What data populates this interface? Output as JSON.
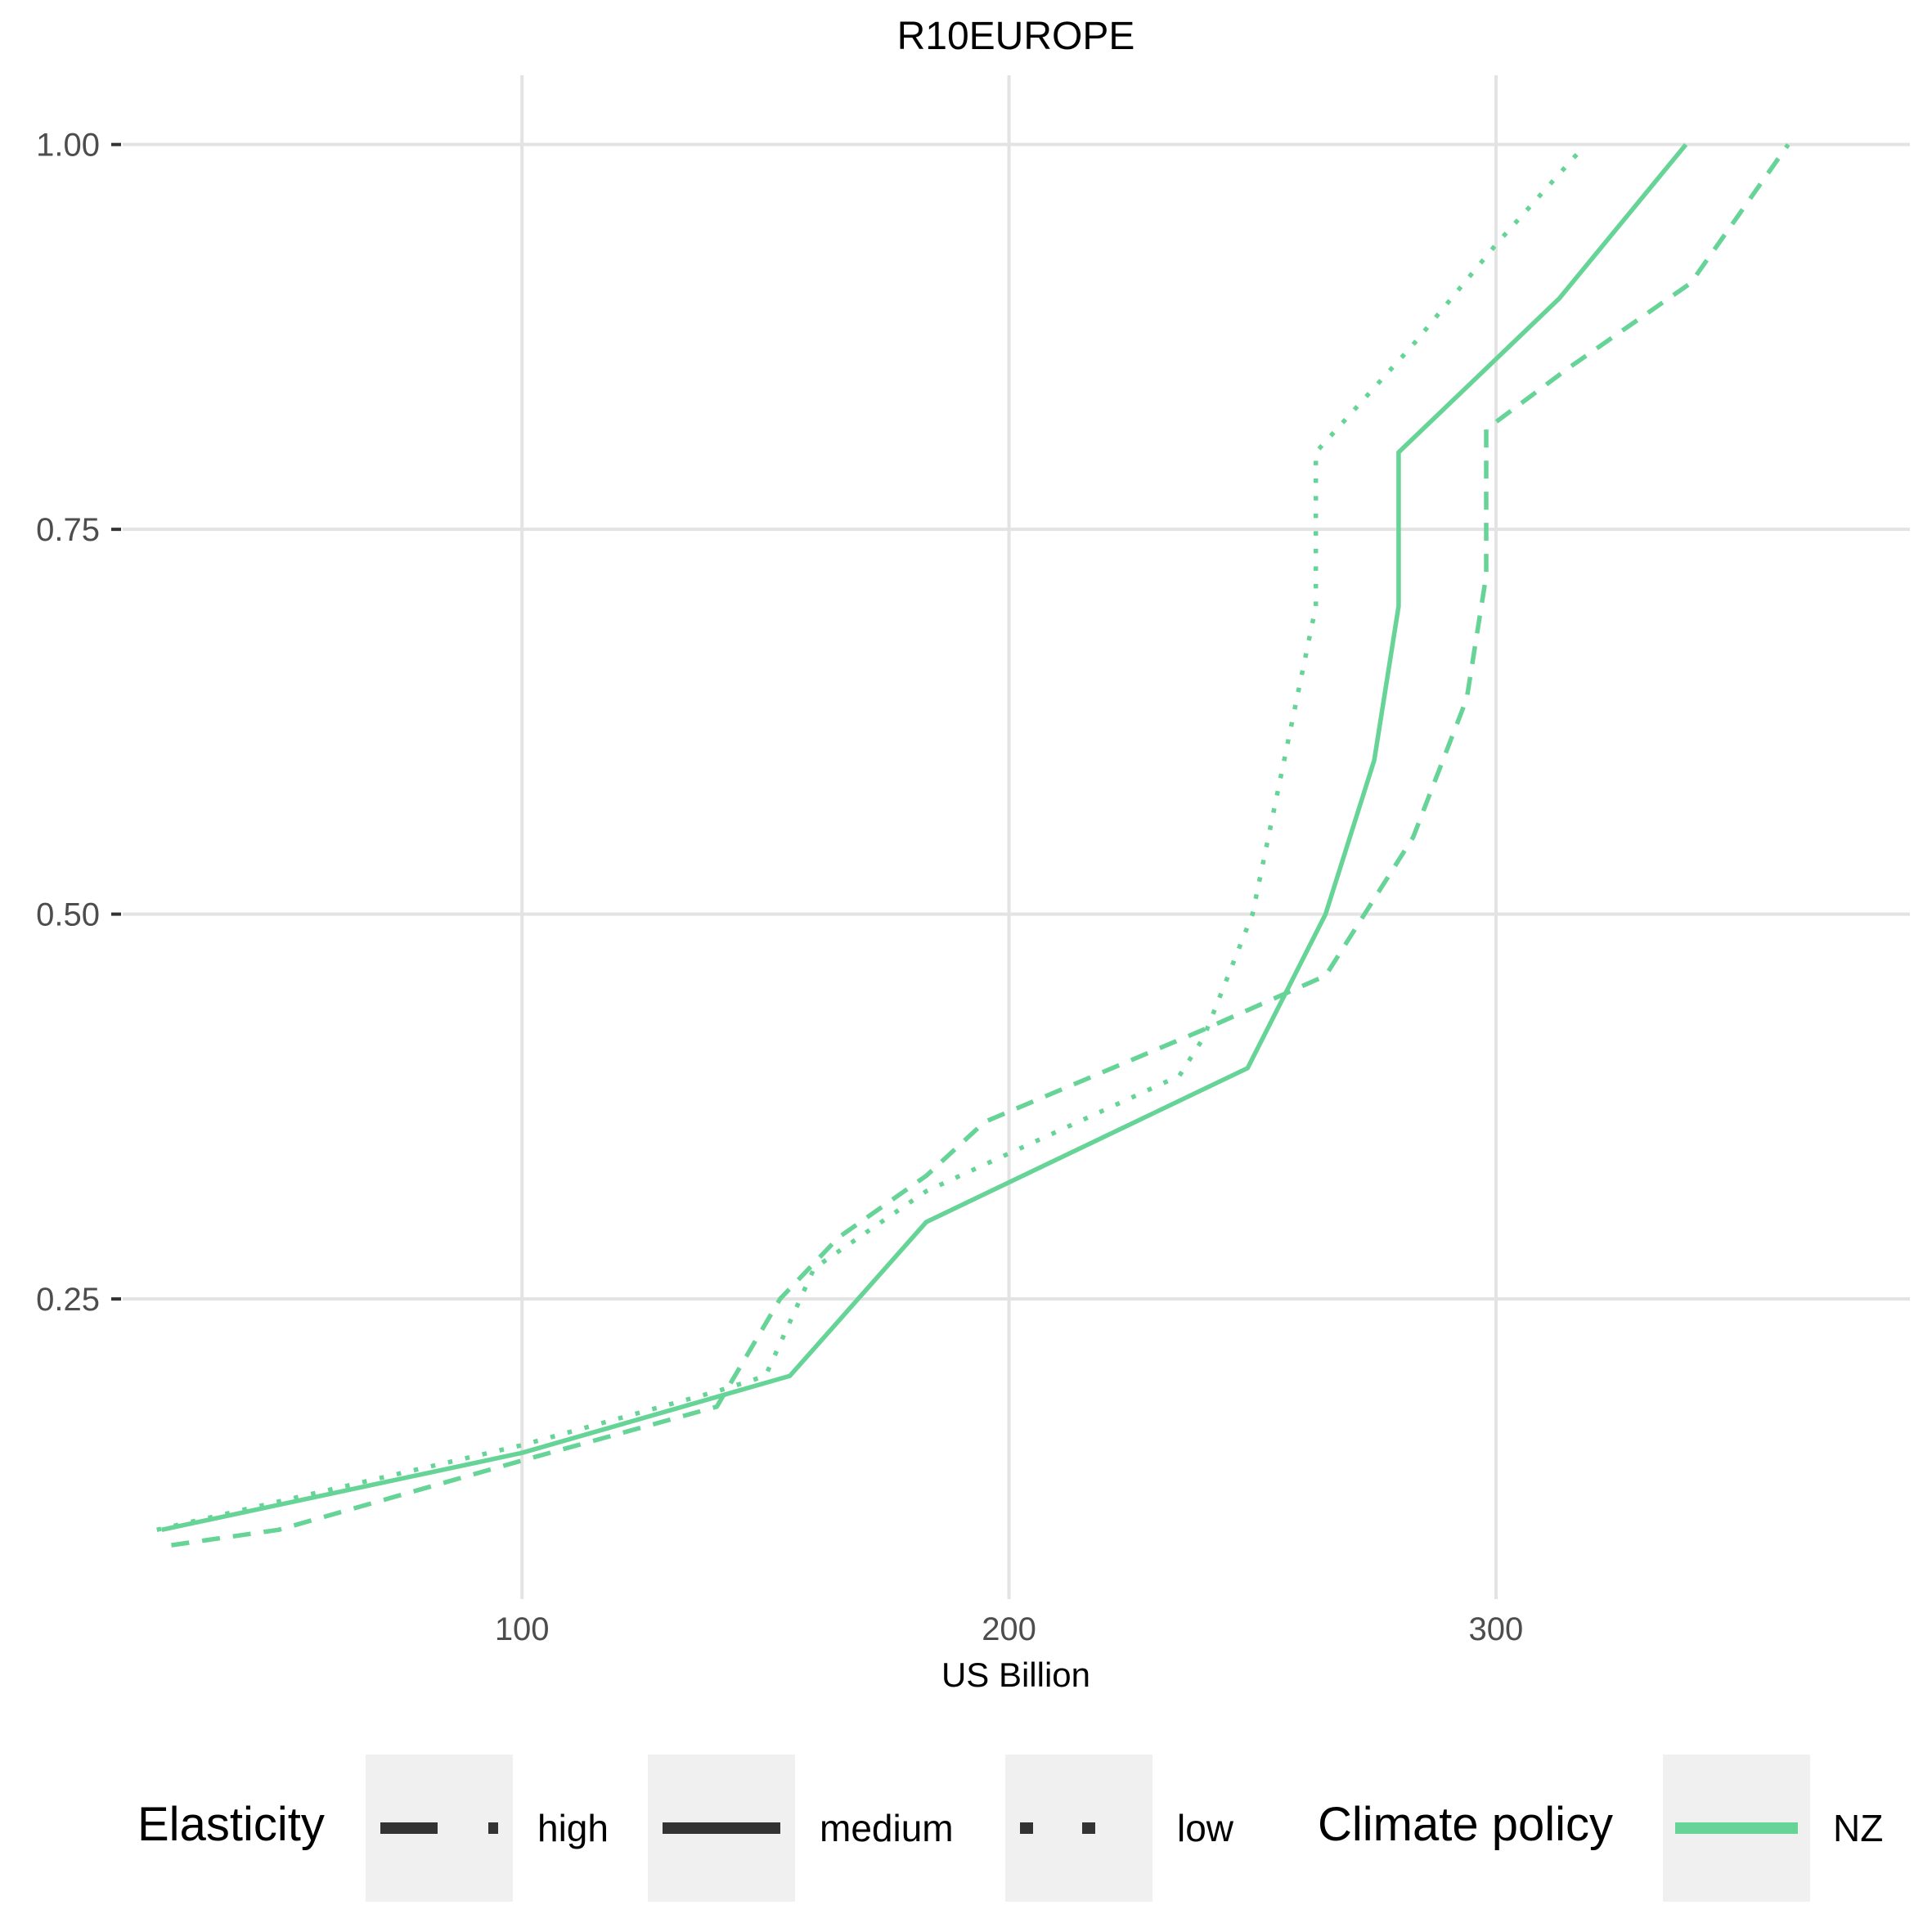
{
  "chart_data": {
    "type": "line",
    "title": "R10EUROPE",
    "xlabel": "US Billion",
    "ylabel": "",
    "xlim": [
      18,
      385
    ],
    "ylim": [
      0.055,
      1.045
    ],
    "x_ticks": [
      {
        "value": 100,
        "label": "100"
      },
      {
        "value": 200,
        "label": "200"
      },
      {
        "value": 300,
        "label": "300"
      }
    ],
    "y_ticks": [
      {
        "value": 0.25,
        "label": "0.25"
      },
      {
        "value": 0.5,
        "label": "0.50"
      },
      {
        "value": 0.75,
        "label": "0.75"
      },
      {
        "value": 1.0,
        "label": "1.00"
      }
    ],
    "grid": true,
    "legend_position": "bottom",
    "series_color": "#66d496",
    "series": [
      {
        "name": "high",
        "climate_policy": "NZ",
        "dash": "dashed",
        "points": [
          [
            28,
            0.09
          ],
          [
            50,
            0.1
          ],
          [
            100,
            0.145
          ],
          [
            140,
            0.18
          ],
          [
            153,
            0.25
          ],
          [
            165,
            0.29
          ],
          [
            183,
            0.33
          ],
          [
            195,
            0.365
          ],
          [
            240,
            0.425
          ],
          [
            265,
            0.46
          ],
          [
            283,
            0.55
          ],
          [
            294,
            0.64
          ],
          [
            298,
            0.72
          ],
          [
            298,
            0.815
          ],
          [
            315,
            0.855
          ],
          [
            340,
            0.91
          ],
          [
            360,
            1.0
          ]
        ]
      },
      {
        "name": "medium",
        "climate_policy": "NZ",
        "dash": "solid",
        "points": [
          [
            26,
            0.1
          ],
          [
            100,
            0.15
          ],
          [
            155,
            0.2
          ],
          [
            183,
            0.3
          ],
          [
            249,
            0.4
          ],
          [
            265,
            0.5
          ],
          [
            275,
            0.6
          ],
          [
            280,
            0.7
          ],
          [
            280,
            0.8
          ],
          [
            313,
            0.9
          ],
          [
            339,
            1.0
          ]
        ]
      },
      {
        "name": "low",
        "climate_policy": "NZ",
        "dash": "dotted",
        "points": [
          [
            25,
            0.1
          ],
          [
            100,
            0.155
          ],
          [
            140,
            0.19
          ],
          [
            150,
            0.2
          ],
          [
            160,
            0.27
          ],
          [
            183,
            0.32
          ],
          [
            235,
            0.395
          ],
          [
            240,
            0.42
          ],
          [
            250,
            0.5
          ],
          [
            263,
            0.7
          ],
          [
            263,
            0.8
          ],
          [
            283,
            0.87
          ],
          [
            300,
            0.935
          ],
          [
            317,
            0.995
          ]
        ]
      }
    ]
  },
  "legend": {
    "elasticity_title": "Elasticity",
    "elasticity_items": [
      {
        "label": "high",
        "dash": "dashed"
      },
      {
        "label": "medium",
        "dash": "solid"
      },
      {
        "label": "low",
        "dash": "dotted"
      }
    ],
    "policy_title": "Climate policy",
    "policy_items": [
      {
        "label": "NZ",
        "color": "#66d496"
      }
    ]
  }
}
